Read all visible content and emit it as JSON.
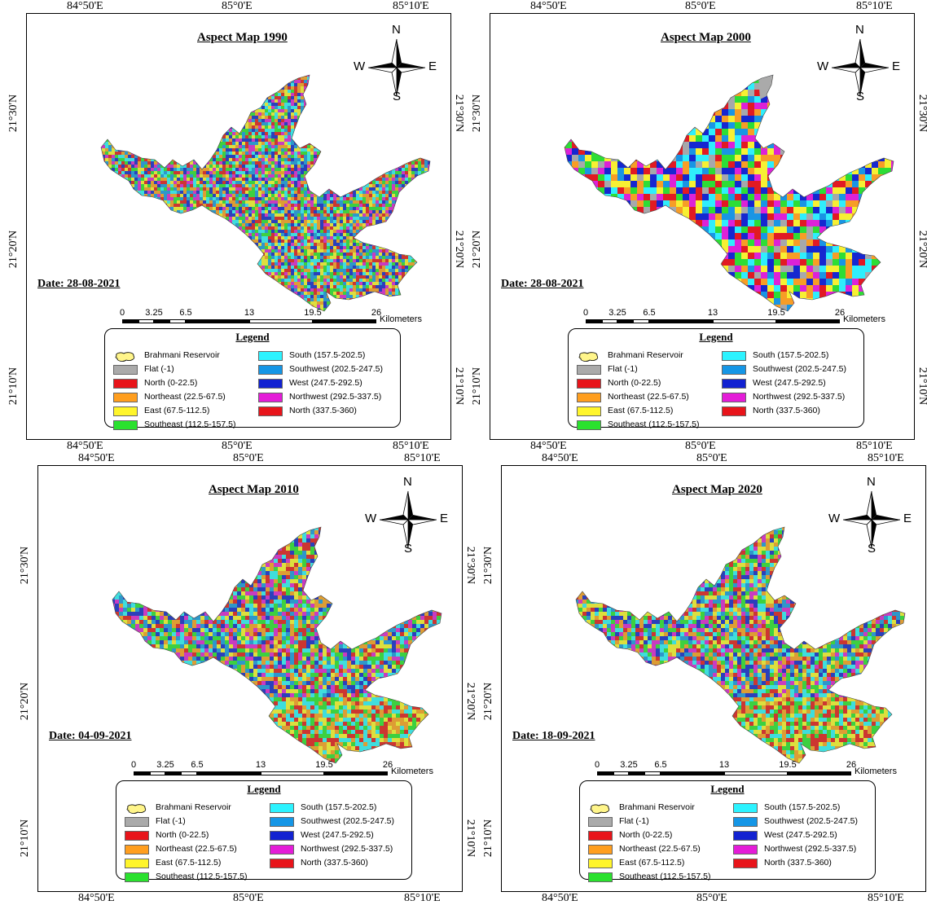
{
  "colors": {
    "flat": "#aaaaaa",
    "north": "#e8141a",
    "northeast": "#ff9e1e",
    "east": "#fff52b",
    "southeast": "#2ae12e",
    "south": "#2cf3ff",
    "southwest": "#1596e6",
    "west": "#1222d1",
    "northwest": "#e41cd8",
    "north2": "#e8141a",
    "reservoir": "#fff58a"
  },
  "maps": [
    {
      "title": "Aspect Map 1990",
      "date": "Date: 28-08-2021",
      "style": "fine"
    },
    {
      "title": "Aspect Map 2000",
      "date": "Date: 28-08-2021",
      "style": "coarse"
    },
    {
      "title": "Aspect Map 2010",
      "date": "Date: 04-09-2021",
      "style": "medium"
    },
    {
      "title": "Aspect Map 2020",
      "date": "Date: 18-09-2021",
      "style": "medium"
    }
  ],
  "grid": {
    "lon": [
      "84°50'E",
      "85°0'E",
      "85°10'E"
    ],
    "lat": [
      "21°30'N",
      "21°20'N",
      "21°10'N"
    ]
  },
  "compass": {
    "n": "N",
    "s": "S",
    "e": "E",
    "w": "W"
  },
  "scale": {
    "ticks": [
      "0",
      "3.25",
      "6.5",
      "13",
      "19.5",
      "26"
    ],
    "unit": "Kilometers"
  },
  "legend": {
    "title": "Legend",
    "left": [
      {
        "label": "Brahmani Reservoir",
        "key": "reservoir"
      },
      {
        "label": "Flat (-1)",
        "key": "flat"
      },
      {
        "label": "North (0-22.5)",
        "key": "north"
      },
      {
        "label": "Northeast (22.5-67.5)",
        "key": "northeast"
      },
      {
        "label": "East (67.5-112.5)",
        "key": "east"
      },
      {
        "label": "Southeast (112.5-157.5)",
        "key": "southeast"
      }
    ],
    "right": [
      {
        "label": "South (157.5-202.5)",
        "key": "south"
      },
      {
        "label": "Southwest (202.5-247.5)",
        "key": "southwest"
      },
      {
        "label": "West (247.5-292.5)",
        "key": "west"
      },
      {
        "label": "Northwest (292.5-337.5)",
        "key": "northwest"
      },
      {
        "label": "North (337.5-360)",
        "key": "north2"
      }
    ]
  }
}
